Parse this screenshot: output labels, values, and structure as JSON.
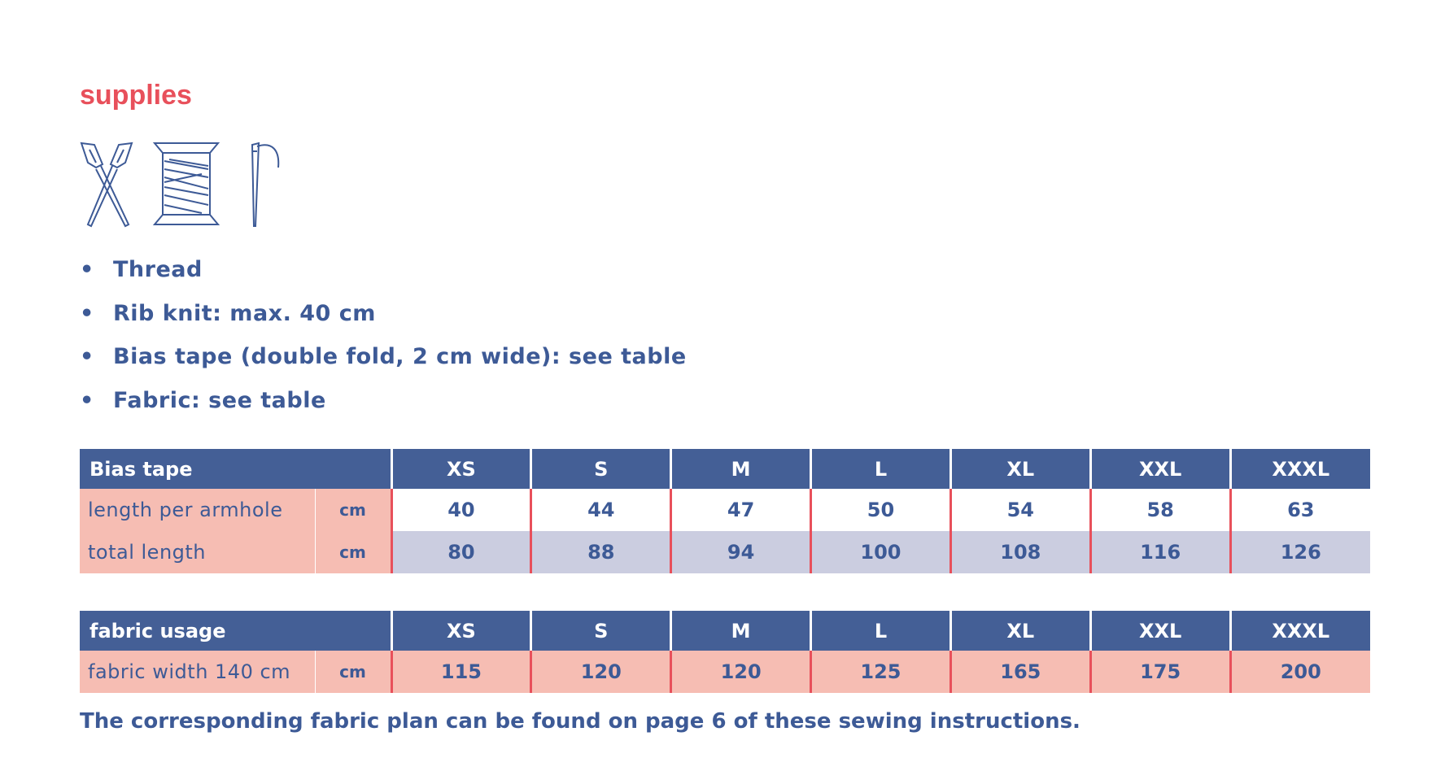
{
  "header": {
    "title": "supplies"
  },
  "list": {
    "items": [
      "Thread",
      "Rib knit: max. 40 cm",
      "Bias tape (double fold, 2 cm wide): see table",
      "Fabric: see table"
    ]
  },
  "tables": [
    {
      "header": [
        "Bias tape",
        "XS",
        "S",
        "M",
        "L",
        "XL",
        "XXL",
        "XXXL"
      ],
      "rows": [
        [
          "length per armhole",
          "cm",
          "40",
          "44",
          "47",
          "50",
          "54",
          "58",
          "63"
        ],
        [
          "total length",
          "cm",
          "80",
          "88",
          "94",
          "100",
          "108",
          "116",
          "126"
        ]
      ]
    },
    {
      "header": [
        "fabric usage",
        "XS",
        "S",
        "M",
        "L",
        "XL",
        "XXL",
        "XXXL"
      ],
      "rows": [
        [
          "fabric width 140 cm",
          "cm",
          "115",
          "120",
          "120",
          "125",
          "165",
          "175",
          "200"
        ]
      ]
    }
  ],
  "footer": {
    "note": "The corresponding fabric plan can be found on page 6 of these sewing instructions."
  }
}
